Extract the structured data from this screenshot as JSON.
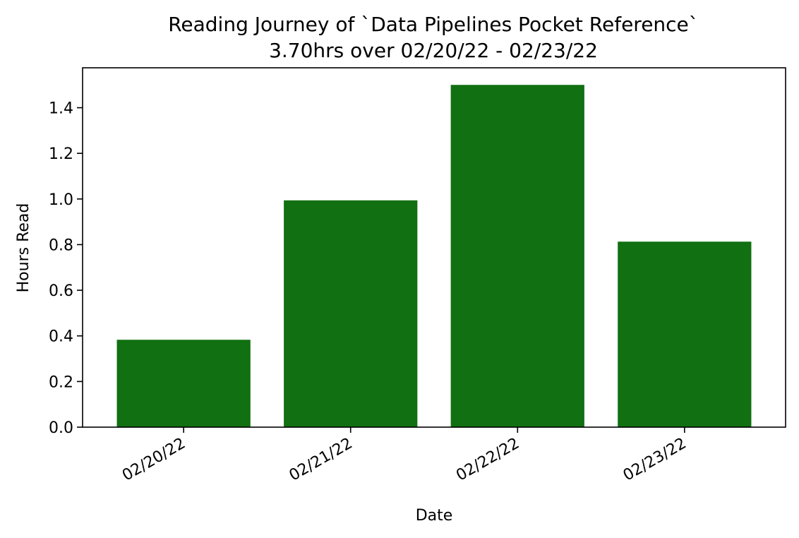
{
  "chart_data": {
    "type": "bar",
    "title": "Reading Journey of `Data Pipelines Pocket Reference`",
    "subtitle": "3.70hrs over 02/20/22 - 02/23/22",
    "xlabel": "Date",
    "ylabel": "Hours Read",
    "categories": [
      "02/20/22",
      "02/21/22",
      "02/22/22",
      "02/23/22"
    ],
    "values": [
      0.383,
      0.994,
      1.5,
      0.813
    ],
    "ylim": [
      0,
      1.575
    ],
    "yticks": [
      0.0,
      0.2,
      0.4,
      0.6,
      0.8,
      1.0,
      1.2,
      1.4
    ],
    "ytick_labels": [
      "0.0",
      "0.2",
      "0.4",
      "0.6",
      "0.8",
      "1.0",
      "1.2",
      "1.4"
    ],
    "bar_color": "#117011",
    "grid": false,
    "legend": "none"
  }
}
